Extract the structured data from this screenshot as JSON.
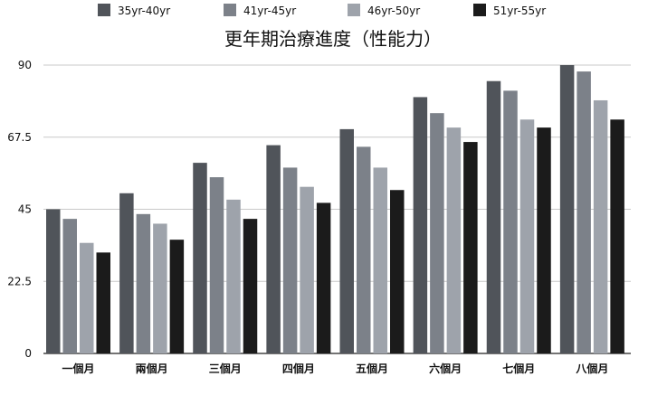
{
  "chart_data": {
    "type": "bar",
    "title": "更年期治療進度（性能力）",
    "xlabel": "",
    "ylabel": "",
    "categories": [
      "一個月",
      "兩個月",
      "三個月",
      "四個月",
      "五個月",
      "六個月",
      "七個月",
      "八個月"
    ],
    "series": [
      {
        "name": "35yr-40yr",
        "color": "#50545a",
        "values": [
          45,
          50,
          59.5,
          65,
          70,
          80,
          85,
          90
        ]
      },
      {
        "name": "41yr-45yr",
        "color": "#7c8189",
        "values": [
          42,
          43.5,
          55,
          58,
          64.5,
          75,
          82,
          88
        ]
      },
      {
        "name": "46yr-50yr",
        "color": "#9ea3ab",
        "values": [
          34.5,
          40.5,
          48,
          52,
          58,
          70.5,
          73,
          79
        ]
      },
      {
        "name": "51yr-55yr",
        "color": "#1b1b1b",
        "values": [
          31.5,
          35.5,
          42,
          47,
          51,
          66,
          70.5,
          73
        ]
      }
    ],
    "yticks": [
      "0",
      "22.5",
      "45",
      "67.5",
      "90"
    ],
    "ytick_values": [
      0,
      22.5,
      45,
      67.5,
      90
    ],
    "ylim": [
      0,
      90
    ],
    "grid": true,
    "legend_position": "top"
  }
}
